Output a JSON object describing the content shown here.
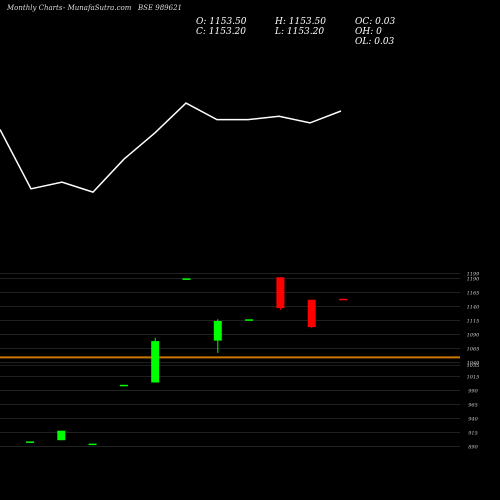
{
  "header": {
    "site_left": "Monthly Charts",
    "site_mid": "- MunafaSutra.com",
    "symbol": "BSE 989621"
  },
  "ohlc": {
    "o": "O: 1153.50",
    "h": "H: 1153.50",
    "oc": "OC: 0.03",
    "c": "C: 1153.20",
    "l": "L: 1153.20",
    "oh": "OH: 0",
    "ol": "OL: 0.03"
  },
  "colors": {
    "background": "#000000",
    "up": "#00ff00",
    "down": "#ff0000",
    "line": "#ffffff",
    "reference": "#cc7700",
    "grid": "#333333"
  },
  "chart_data": [
    {
      "type": "line",
      "series": [
        {
          "values": [
            1190,
            1100,
            1110,
            1095,
            1145,
            1185,
            1230,
            1205,
            1205,
            1210,
            1200,
            1218
          ]
        }
      ],
      "ylim": [
        1030,
        1265
      ]
    },
    {
      "type": "candlestick",
      "y_tick_labels": [
        "1199",
        "1190",
        "1165",
        "1140",
        "1115",
        "1090",
        "1065",
        "1040",
        "1035",
        "1015",
        "990",
        "965",
        "940",
        "915",
        "890"
      ],
      "y_tick_values": [
        1199,
        1190,
        1165,
        1140,
        1115,
        1090,
        1065,
        1040,
        1035,
        1015,
        990,
        965,
        940,
        915,
        890
      ],
      "reference_line": 1049,
      "ylim": [
        880,
        1205
      ],
      "candles": [
        {
          "o": 899,
          "h": 899,
          "l": 899,
          "c": 899
        },
        {
          "o": 901,
          "h": 918,
          "l": 901,
          "c": 918
        },
        {
          "o": 895,
          "h": 895,
          "l": 895,
          "c": 895
        },
        {
          "o": 1000,
          "h": 1000,
          "l": 1000,
          "c": 1000
        },
        {
          "o": 1004,
          "h": 1084,
          "l": 1004,
          "c": 1078
        },
        {
          "o": 1190,
          "h": 1190,
          "l": 1190,
          "c": 1190
        },
        {
          "o": 1079,
          "h": 1117,
          "l": 1057,
          "c": 1114
        },
        {
          "o": 1117,
          "h": 1117,
          "l": 1117,
          "c": 1117
        },
        {
          "o": 1192,
          "h": 1192,
          "l": 1134,
          "c": 1137
        },
        {
          "o": 1152,
          "h": 1152,
          "l": 1101,
          "c": 1103
        },
        {
          "o": 1153.5,
          "h": 1153.5,
          "l": 1153.2,
          "c": 1153.2
        }
      ]
    }
  ]
}
